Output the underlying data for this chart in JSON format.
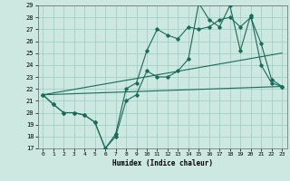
{
  "title": "",
  "xlabel": "Humidex (Indice chaleur)",
  "ylabel": "",
  "bg_color": "#cce8e0",
  "grid_color": "#99ccc0",
  "line_color": "#1a6b5a",
  "xlim": [
    -0.5,
    23.5
  ],
  "ylim": [
    17,
    29
  ],
  "xticks": [
    0,
    1,
    2,
    3,
    4,
    5,
    6,
    7,
    8,
    9,
    10,
    11,
    12,
    13,
    14,
    15,
    16,
    17,
    18,
    19,
    20,
    21,
    22,
    23
  ],
  "yticks": [
    17,
    18,
    19,
    20,
    21,
    22,
    23,
    24,
    25,
    26,
    27,
    28,
    29
  ],
  "lines": [
    {
      "x": [
        0,
        1,
        2,
        3,
        4,
        5,
        6,
        7,
        8,
        9,
        10,
        11,
        12,
        13,
        14,
        15,
        16,
        17,
        18,
        19,
        20,
        21,
        22,
        23
      ],
      "y": [
        21.5,
        20.7,
        20.0,
        20.0,
        19.8,
        19.2,
        17.0,
        18.0,
        21.0,
        21.5,
        23.5,
        23.0,
        23.0,
        23.5,
        24.5,
        29.2,
        27.8,
        27.2,
        29.0,
        25.2,
        28.2,
        24.0,
        22.5,
        22.2
      ],
      "marker": true
    },
    {
      "x": [
        0,
        1,
        2,
        3,
        4,
        5,
        6,
        7,
        8,
        9,
        10,
        11,
        12,
        13,
        14,
        15,
        16,
        17,
        18,
        19,
        20,
        21,
        22,
        23
      ],
      "y": [
        21.5,
        20.7,
        20.0,
        20.0,
        19.8,
        19.2,
        17.0,
        18.2,
        22.0,
        22.5,
        25.2,
        27.0,
        26.5,
        26.2,
        27.2,
        27.0,
        27.2,
        27.8,
        28.0,
        27.2,
        28.0,
        25.8,
        22.8,
        22.2
      ],
      "marker": true
    },
    {
      "x": [
        0,
        23
      ],
      "y": [
        21.5,
        22.2
      ],
      "marker": false
    },
    {
      "x": [
        0,
        23
      ],
      "y": [
        21.5,
        25.0
      ],
      "marker": false
    }
  ]
}
